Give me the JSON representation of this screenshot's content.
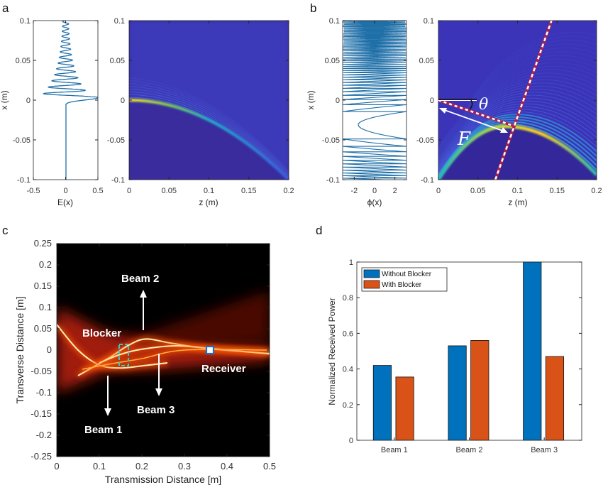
{
  "panel_labels": {
    "a": "a",
    "b": "b",
    "c": "c",
    "d": "d"
  },
  "colors": {
    "line": "#1f6fa8",
    "parula_dark": "#3a2c9c",
    "parula_yellow": "#f2e524",
    "hot_bg": "#000000",
    "hot_red": "#c81d0a",
    "blue_bar": "#0072bd",
    "orange_bar": "#d95319",
    "dashed_line": "#b0204a",
    "blocker": "#38c8c8",
    "receiver": "#1f6fc8"
  },
  "chart_data": [
    {
      "id": "a-field",
      "type": "line",
      "xlabel": "E(x)",
      "ylabel": "x (m)",
      "xlim": [
        -0.5,
        0.5
      ],
      "ylim": [
        -0.1,
        0.1
      ],
      "xticks": [
        "-0.5",
        "0",
        "0.5"
      ],
      "xtick_values": [
        -0.5,
        0,
        0.5
      ],
      "yticks": [
        "0.1",
        "0.05",
        "0",
        "-0.05",
        "-0.1"
      ],
      "ytick_values": [
        0.1,
        0.05,
        0,
        -0.05,
        -0.1
      ]
    },
    {
      "id": "a-heatmap",
      "type": "heatmap",
      "xlabel": "z (m)",
      "xlim": [
        0,
        0.2
      ],
      "ylim": [
        -0.1,
        0.1
      ],
      "xticks": [
        "0",
        "0.05",
        "0.1",
        "0.15",
        "0.2"
      ],
      "xtick_values": [
        0,
        0.05,
        0.1,
        0.15,
        0.2
      ],
      "yticks": [
        "0.1",
        "0.05",
        "0",
        "-0.05",
        "-0.1"
      ],
      "ytick_values": [
        0.1,
        0.05,
        0,
        -0.05,
        -0.1
      ],
      "colormap": "parula"
    },
    {
      "id": "b-phase",
      "type": "line",
      "xlabel": "ϕ(x)",
      "ylabel": "x (m)",
      "xlim": [
        -3.1416,
        3.1416
      ],
      "ylim": [
        -0.1,
        0.1
      ],
      "xticks": [
        "-2",
        "0",
        "2"
      ],
      "xtick_values": [
        -2,
        0,
        2
      ],
      "yticks": [
        "0.1",
        "0.05",
        "0",
        "-0.05",
        "-0.1"
      ],
      "ytick_values": [
        0.1,
        0.05,
        0,
        -0.05,
        -0.1
      ]
    },
    {
      "id": "b-heatmap",
      "type": "heatmap",
      "xlabel": "z (m)",
      "xlim": [
        0,
        0.2
      ],
      "ylim": [
        -0.1,
        0.1
      ],
      "xticks": [
        "0",
        "0.05",
        "0.1",
        "0.15",
        "0.2"
      ],
      "xtick_values": [
        0,
        0.05,
        0.1,
        0.15,
        0.2
      ],
      "yticks": [
        "0.1",
        "0.05",
        "0",
        "-0.05",
        "-0.1"
      ],
      "ytick_values": [
        0.1,
        0.05,
        0,
        -0.05,
        -0.1
      ],
      "colormap": "parula",
      "annotations": {
        "theta": "θ",
        "focal": "F"
      }
    },
    {
      "id": "c-heatmap",
      "type": "heatmap",
      "xlabel": "Transmission Distance [m]",
      "ylabel": "Transverse Distance [m]",
      "xlim": [
        0,
        0.5
      ],
      "ylim": [
        -0.25,
        0.25
      ],
      "xticks": [
        "0",
        "0.1",
        "0.2",
        "0.3",
        "0.4",
        "0.5"
      ],
      "xtick_values": [
        0,
        0.1,
        0.2,
        0.3,
        0.4,
        0.5
      ],
      "yticks": [
        "0.25",
        "0.2",
        "0.15",
        "0.1",
        "0.05",
        "0",
        "-0.05",
        "-0.1",
        "-0.15",
        "-0.2",
        "-0.25"
      ],
      "ytick_values": [
        0.25,
        0.2,
        0.15,
        0.1,
        0.05,
        0,
        -0.05,
        -0.1,
        -0.15,
        -0.2,
        -0.25
      ],
      "colormap": "hot",
      "annotations": {
        "beam1": "Beam 1",
        "beam2": "Beam 2",
        "beam3": "Beam 3",
        "blocker": "Blocker",
        "receiver": "Receiver"
      },
      "receiver_position": [
        0.36,
        0.0
      ]
    },
    {
      "id": "d-bars",
      "type": "bar",
      "categories": [
        "Beam 1",
        "Beam 2",
        "Beam 3"
      ],
      "series": [
        {
          "name": "Without Blocker",
          "values": [
            0.42,
            0.53,
            1.0
          ],
          "color": "#0072bd"
        },
        {
          "name": "With Blocker",
          "values": [
            0.355,
            0.56,
            0.47
          ],
          "color": "#d95319"
        }
      ],
      "xlabel": "",
      "ylabel": "Normalized Received Power",
      "ylim": [
        0,
        1
      ],
      "yticks": [
        "1",
        "0.8",
        "0.6",
        "0.4",
        "0.2",
        "0"
      ],
      "ytick_values": [
        1,
        0.8,
        0.6,
        0.4,
        0.2,
        0
      ],
      "legend": "top-left"
    }
  ]
}
